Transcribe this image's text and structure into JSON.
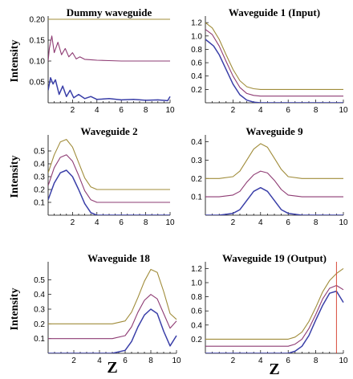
{
  "colors": {
    "gold": "#a08c3a",
    "purple": "#8e3b73",
    "blue": "#3a3fa8",
    "red": "#d94a3a"
  },
  "chart_data": [
    {
      "type": "line",
      "title": "Dummy waveguide",
      "ylabel": "Intensity",
      "xlabel": "",
      "xlim": [
        0,
        10
      ],
      "ylim": [
        0,
        0.2
      ],
      "xticks": [
        2,
        4,
        6,
        8,
        10
      ],
      "yticks": [
        0.05,
        0.1,
        0.15,
        0.2
      ],
      "ytick_labels": [
        "0.05",
        "0.10",
        "0.15",
        "0.20"
      ],
      "series": [
        {
          "color": "gold",
          "x": [
            0,
            10
          ],
          "y": [
            0.2,
            0.2
          ]
        },
        {
          "color": "purple",
          "x": [
            0,
            0.1,
            0.3,
            0.5,
            0.8,
            1.1,
            1.4,
            1.7,
            2.0,
            2.3,
            2.6,
            3.0,
            3.5,
            4,
            5,
            6,
            7,
            8,
            9,
            10
          ],
          "y": [
            0.1,
            0.13,
            0.16,
            0.12,
            0.145,
            0.115,
            0.13,
            0.11,
            0.12,
            0.105,
            0.11,
            0.104,
            0.103,
            0.102,
            0.101,
            0.1,
            0.1,
            0.1,
            0.1,
            0.1
          ]
        },
        {
          "color": "blue",
          "x": [
            0,
            0.2,
            0.4,
            0.6,
            0.9,
            1.2,
            1.5,
            1.8,
            2.1,
            2.5,
            3,
            3.5,
            4,
            5,
            6,
            7,
            8,
            9,
            9.8,
            10
          ],
          "y": [
            0.03,
            0.06,
            0.045,
            0.055,
            0.02,
            0.04,
            0.015,
            0.03,
            0.012,
            0.02,
            0.01,
            0.015,
            0.008,
            0.01,
            0.007,
            0.008,
            0.006,
            0.007,
            0.005,
            0.015
          ]
        }
      ]
    },
    {
      "type": "line",
      "title": "Waveguide 1 (Input)",
      "ylabel": "",
      "xlabel": "",
      "xlim": [
        0,
        10
      ],
      "ylim": [
        0,
        1.25
      ],
      "xticks": [
        2,
        4,
        6,
        8,
        10
      ],
      "yticks": [
        0.2,
        0.4,
        0.6,
        0.8,
        1.0,
        1.2
      ],
      "ytick_labels": [
        "0.2",
        "0.4",
        "0.6",
        "0.8",
        "1.0",
        "1.2"
      ],
      "series": [
        {
          "color": "gold",
          "x": [
            0,
            0.5,
            1,
            1.5,
            2,
            2.5,
            3,
            3.5,
            4,
            5,
            10
          ],
          "y": [
            1.2,
            1.12,
            0.95,
            0.72,
            0.5,
            0.33,
            0.24,
            0.21,
            0.2,
            0.2,
            0.2
          ]
        },
        {
          "color": "purple",
          "x": [
            0,
            0.5,
            1,
            1.5,
            2,
            2.5,
            3,
            3.5,
            4,
            5,
            10
          ],
          "y": [
            1.1,
            1.02,
            0.85,
            0.62,
            0.4,
            0.23,
            0.14,
            0.11,
            0.1,
            0.1,
            0.1
          ]
        },
        {
          "color": "blue",
          "x": [
            0,
            0.3,
            0.6,
            1,
            1.5,
            2,
            2.5,
            3,
            3.5,
            4,
            10
          ],
          "y": [
            0.95,
            0.9,
            0.85,
            0.72,
            0.5,
            0.28,
            0.12,
            0.04,
            0.01,
            0,
            0
          ]
        }
      ]
    },
    {
      "type": "line",
      "title": "Waveguide 2",
      "ylabel": "Intensity",
      "xlabel": "",
      "xlim": [
        0,
        10
      ],
      "ylim": [
        0,
        0.6
      ],
      "xticks": [
        2,
        4,
        6,
        8,
        10
      ],
      "yticks": [
        0.1,
        0.2,
        0.3,
        0.4,
        0.5
      ],
      "ytick_labels": [
        "0.1",
        "0.2",
        "0.3",
        "0.4",
        "0.5"
      ],
      "series": [
        {
          "color": "gold",
          "x": [
            0,
            0.5,
            1,
            1.5,
            2,
            2.5,
            3,
            3.5,
            4,
            5,
            10
          ],
          "y": [
            0.33,
            0.47,
            0.57,
            0.59,
            0.53,
            0.41,
            0.29,
            0.22,
            0.2,
            0.2,
            0.2
          ]
        },
        {
          "color": "purple",
          "x": [
            0,
            0.5,
            1,
            1.5,
            2,
            2.5,
            3,
            3.5,
            4,
            5,
            10
          ],
          "y": [
            0.23,
            0.37,
            0.45,
            0.47,
            0.42,
            0.31,
            0.19,
            0.12,
            0.1,
            0.1,
            0.1
          ]
        },
        {
          "color": "blue",
          "x": [
            0,
            0.5,
            1,
            1.5,
            2,
            2.5,
            3,
            3.5,
            4,
            5,
            10
          ],
          "y": [
            0.12,
            0.25,
            0.33,
            0.35,
            0.3,
            0.2,
            0.09,
            0.02,
            0,
            0,
            0
          ]
        }
      ]
    },
    {
      "type": "line",
      "title": "Waveguide 9",
      "ylabel": "",
      "xlabel": "",
      "xlim": [
        0,
        10
      ],
      "ylim": [
        0,
        0.42
      ],
      "xticks": [
        2,
        4,
        6,
        8,
        10
      ],
      "yticks": [
        0.1,
        0.2,
        0.3,
        0.4
      ],
      "ytick_labels": [
        "0.1",
        "0.2",
        "0.3",
        "0.4"
      ],
      "series": [
        {
          "color": "gold",
          "x": [
            0,
            1,
            2,
            2.5,
            3,
            3.5,
            4,
            4.5,
            5,
            5.5,
            6,
            7,
            10
          ],
          "y": [
            0.2,
            0.2,
            0.21,
            0.24,
            0.3,
            0.36,
            0.39,
            0.37,
            0.31,
            0.25,
            0.21,
            0.2,
            0.2
          ]
        },
        {
          "color": "purple",
          "x": [
            0,
            1,
            2,
            2.5,
            3,
            3.5,
            4,
            4.5,
            5,
            5.5,
            6,
            7,
            10
          ],
          "y": [
            0.1,
            0.1,
            0.11,
            0.13,
            0.18,
            0.22,
            0.24,
            0.23,
            0.19,
            0.14,
            0.11,
            0.1,
            0.1
          ]
        },
        {
          "color": "blue",
          "x": [
            0,
            1,
            2,
            2.5,
            3,
            3.5,
            4,
            4.5,
            5,
            5.5,
            6,
            7,
            10
          ],
          "y": [
            0,
            0,
            0.01,
            0.03,
            0.08,
            0.13,
            0.15,
            0.13,
            0.08,
            0.03,
            0.01,
            0,
            0
          ]
        }
      ]
    },
    {
      "type": "line",
      "title": "Waveguide 18",
      "ylabel": "Intensity",
      "xlabel": "Z",
      "xlim": [
        0,
        10
      ],
      "ylim": [
        0,
        0.6
      ],
      "xticks": [
        2,
        4,
        6,
        8,
        10
      ],
      "yticks": [
        0.1,
        0.2,
        0.3,
        0.4,
        0.5
      ],
      "ytick_labels": [
        "0.1",
        "0.2",
        "0.3",
        "0.4",
        "0.5"
      ],
      "series": [
        {
          "color": "gold",
          "x": [
            0,
            5,
            6,
            6.5,
            7,
            7.5,
            8,
            8.5,
            9,
            9.5,
            10
          ],
          "y": [
            0.2,
            0.2,
            0.22,
            0.28,
            0.38,
            0.49,
            0.57,
            0.55,
            0.42,
            0.27,
            0.23
          ]
        },
        {
          "color": "purple",
          "x": [
            0,
            5,
            6,
            6.5,
            7,
            7.5,
            8,
            8.5,
            9,
            9.5,
            10
          ],
          "y": [
            0.1,
            0.1,
            0.12,
            0.18,
            0.28,
            0.36,
            0.4,
            0.37,
            0.27,
            0.17,
            0.22
          ]
        },
        {
          "color": "blue",
          "x": [
            0,
            5,
            6,
            6.5,
            7,
            7.5,
            8,
            8.5,
            9,
            9.5,
            10
          ],
          "y": [
            0,
            0,
            0.02,
            0.08,
            0.18,
            0.26,
            0.3,
            0.27,
            0.15,
            0.05,
            0.12
          ]
        }
      ]
    },
    {
      "type": "line",
      "title": "Waveguide 19 (Output)",
      "ylabel": "",
      "xlabel": "Z",
      "xlim": [
        0,
        10
      ],
      "ylim": [
        0,
        1.25
      ],
      "xticks": [
        2,
        4,
        6,
        8,
        10
      ],
      "yticks": [
        0.2,
        0.4,
        0.6,
        0.8,
        1.0,
        1.2
      ],
      "ytick_labels": [
        "0.2",
        "0.4",
        "0.6",
        "0.8",
        "1.0",
        "1.2"
      ],
      "vline_x": 9.5,
      "series": [
        {
          "color": "gold",
          "x": [
            0,
            6,
            6.5,
            7,
            7.5,
            8,
            8.5,
            9,
            9.5,
            10
          ],
          "y": [
            0.2,
            0.2,
            0.23,
            0.3,
            0.45,
            0.65,
            0.87,
            1.03,
            1.13,
            1.2
          ]
        },
        {
          "color": "purple",
          "x": [
            0,
            6,
            6.5,
            7,
            7.5,
            8,
            8.5,
            9,
            9.5,
            10
          ],
          "y": [
            0.1,
            0.1,
            0.13,
            0.2,
            0.35,
            0.55,
            0.77,
            0.92,
            0.96,
            0.9
          ]
        },
        {
          "color": "blue",
          "x": [
            0,
            6,
            6.5,
            7,
            7.5,
            8,
            8.5,
            9,
            9.5,
            10
          ],
          "y": [
            0,
            0,
            0.03,
            0.1,
            0.25,
            0.47,
            0.68,
            0.85,
            0.88,
            0.72
          ]
        }
      ]
    }
  ]
}
